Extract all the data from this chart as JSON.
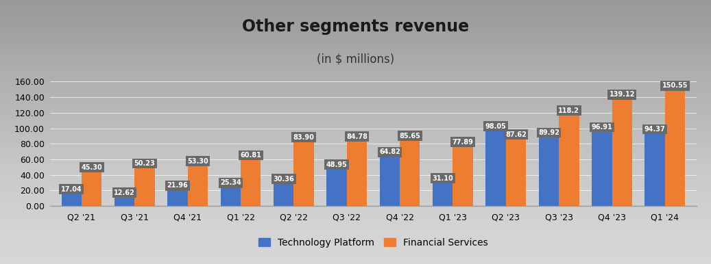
{
  "title": "Other segments revenue",
  "subtitle": "(in $ millions)",
  "categories": [
    "Q2 '21",
    "Q3 '21",
    "Q4 '21",
    "Q1 '22",
    "Q2 '22",
    "Q3 '22",
    "Q4 '22",
    "Q1 '23",
    "Q2 '23",
    "Q3 '23",
    "Q4 '23",
    "Q1 '24"
  ],
  "tech_platform": [
    17.04,
    12.62,
    21.96,
    25.34,
    30.36,
    48.95,
    64.82,
    31.1,
    98.05,
    89.92,
    96.91,
    94.37
  ],
  "financial_services": [
    45.3,
    50.23,
    53.3,
    60.81,
    83.9,
    84.78,
    85.65,
    77.89,
    87.62,
    118.25,
    139.12,
    150.55
  ],
  "tech_labels": [
    "17.04",
    "12.62",
    "21.96",
    "25.34",
    "30.36",
    "48.95",
    "64.82",
    "31.10",
    "98.05",
    "89.92",
    "96.91",
    "94.37"
  ],
  "fin_labels": [
    "45.30",
    "50.23",
    "53.30",
    "60.81",
    "83.90",
    "84.78",
    "85.65",
    "77.89",
    "87.62",
    "118.2",
    "139.12",
    "150.55"
  ],
  "tech_color": "#4472C4",
  "fin_color": "#ED7D31",
  "label_box_color": "#696969",
  "ylim": [
    0,
    170
  ],
  "yticks": [
    0.0,
    20.0,
    40.0,
    60.0,
    80.0,
    100.0,
    120.0,
    140.0,
    160.0
  ],
  "bar_width": 0.38,
  "title_fontsize": 17,
  "subtitle_fontsize": 12,
  "legend_labels": [
    "Technology Platform",
    "Financial Services"
  ],
  "bg_top": "#F2F2F2",
  "bg_bottom": "#C8C8C8"
}
